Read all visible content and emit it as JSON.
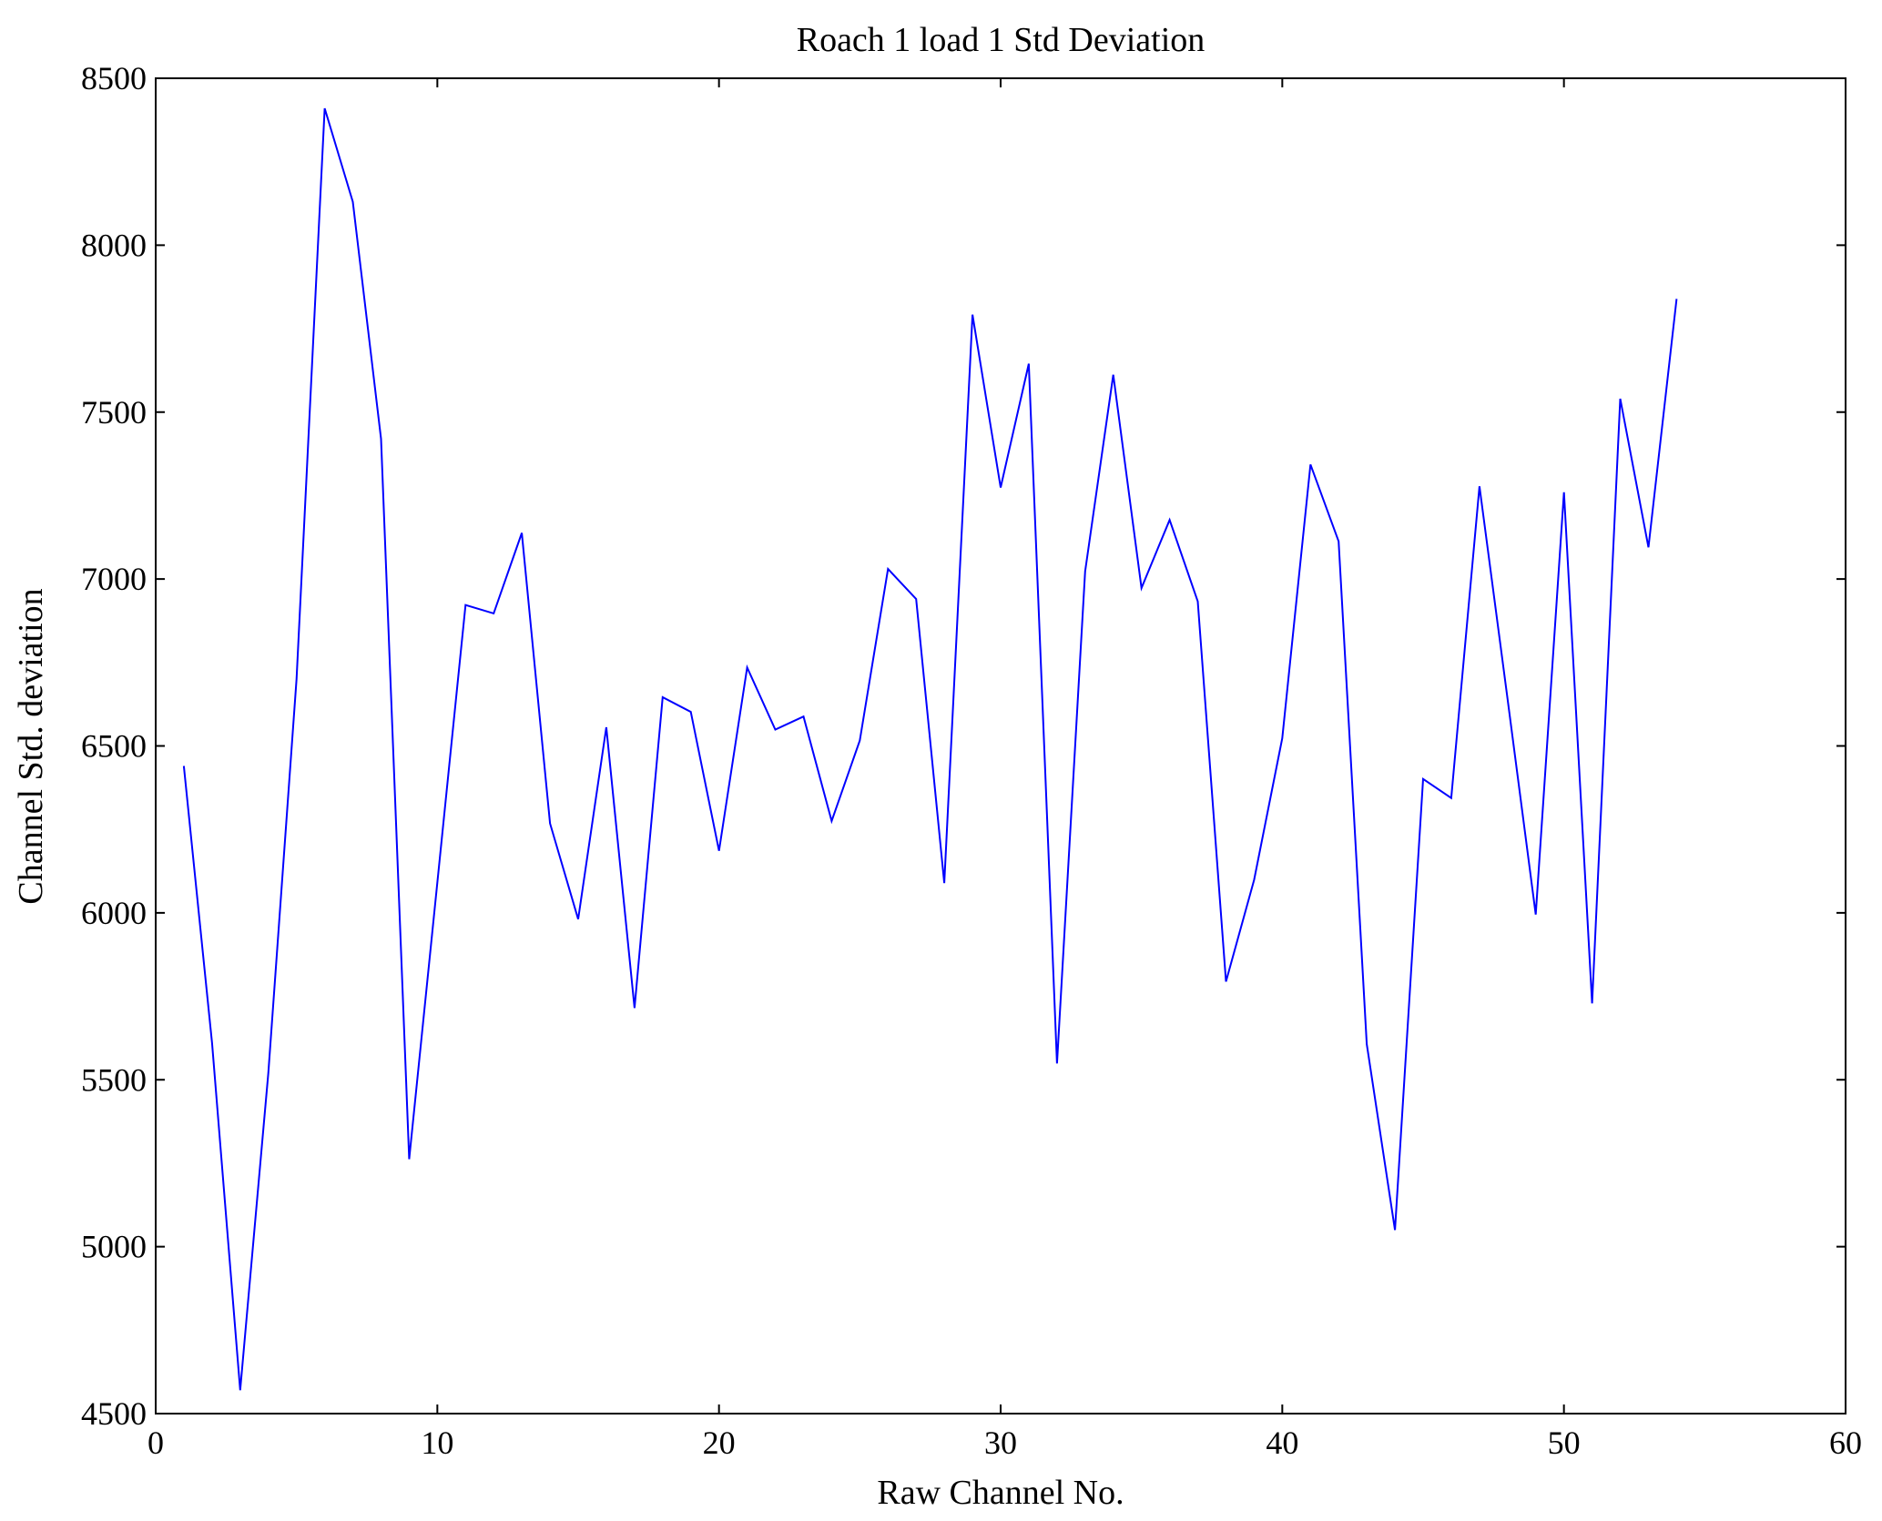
{
  "chart_data": {
    "type": "line",
    "title": "Roach 1 load 1 Std Deviation",
    "xlabel": "Raw Channel No.",
    "ylabel": "Channel Std. deviation",
    "xlim": [
      0,
      60
    ],
    "ylim": [
      4500,
      8500
    ],
    "xticks": [
      0,
      10,
      20,
      30,
      40,
      50,
      60
    ],
    "yticks": [
      4500,
      5000,
      5500,
      6000,
      6500,
      7000,
      7500,
      8000,
      8500
    ],
    "grid": false,
    "series": [
      {
        "name": "std deviation",
        "color": "#0000ff",
        "x": [
          1,
          2,
          3,
          4,
          5,
          6,
          7,
          8,
          9,
          10,
          11,
          12,
          13,
          14,
          15,
          16,
          17,
          18,
          19,
          20,
          21,
          22,
          23,
          24,
          25,
          26,
          27,
          28,
          29,
          30,
          31,
          32,
          33,
          34,
          35,
          36,
          37,
          38,
          39,
          40,
          41,
          42,
          43,
          44,
          45,
          46,
          47,
          48,
          49,
          50,
          51,
          52,
          53,
          54
        ],
        "y": [
          6440,
          5610,
          4570,
          5520,
          6700,
          8410,
          8130,
          7420,
          5262,
          6090,
          6922,
          6897,
          7138,
          6268,
          5981,
          6556,
          5715,
          6646,
          6602,
          6186,
          6735,
          6549,
          6588,
          6275,
          6516,
          7030,
          6940,
          6089,
          7792,
          7274,
          7645,
          5549,
          7023,
          7612,
          6973,
          7177,
          6933,
          5794,
          6099,
          6523,
          7343,
          7113,
          5607,
          5050,
          6401,
          6344,
          7278,
          6640,
          5995,
          7260,
          5729,
          7540,
          7095,
          7839
        ]
      }
    ]
  }
}
